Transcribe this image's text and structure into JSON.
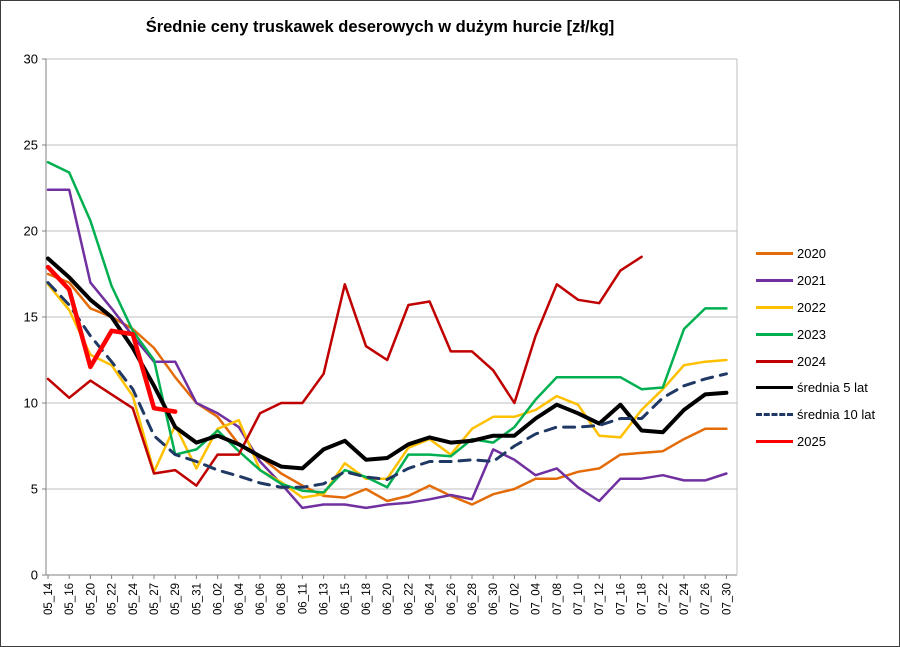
{
  "title": "Średnie ceny truskawek deserowych w dużym hurcie [zł/kg]",
  "colors": {
    "grid": "#BFBFBF",
    "axis": "#808080",
    "background": "#FFFFFF",
    "title_text": "#000000"
  },
  "chart_data": {
    "type": "line",
    "title": "Średnie ceny truskawek deserowych w dużym hurcie [zł/kg]",
    "xlabel": "",
    "ylabel": "",
    "ylim": [
      0,
      30
    ],
    "yticks": [
      0,
      5,
      10,
      15,
      20,
      25,
      30
    ],
    "grid": "horizontal",
    "legend_position": "right",
    "categories": [
      "05_14",
      "05_16",
      "05_20",
      "05_22",
      "05_24",
      "05_27",
      "05_29",
      "05_31",
      "06_02",
      "06_04",
      "06_06",
      "06_08",
      "06_11",
      "06_13",
      "06_15",
      "06_18",
      "06_20",
      "06_22",
      "06_24",
      "06_26",
      "06_28",
      "06_30",
      "07_02",
      "07_04",
      "07_08",
      "07_10",
      "07_12",
      "07_16",
      "07_18",
      "07_22",
      "07_24",
      "07_26",
      "07_30"
    ],
    "series": [
      {
        "name": "2020",
        "color": "#E36C09",
        "style": "solid",
        "width": 2.5,
        "values": [
          17.5,
          17.0,
          15.5,
          15.0,
          14.3,
          13.2,
          11.5,
          10.0,
          9.2,
          7.6,
          6.9,
          5.9,
          5.2,
          4.6,
          4.5,
          5.0,
          4.3,
          4.6,
          5.2,
          4.6,
          4.1,
          4.7,
          5.0,
          5.6,
          5.6,
          6.0,
          6.2,
          7.0,
          7.1,
          7.2,
          7.9,
          8.5,
          8.5
        ]
      },
      {
        "name": "2021",
        "color": "#7030A0",
        "style": "solid",
        "width": 2.5,
        "values": [
          22.4,
          22.4,
          17.0,
          15.5,
          13.9,
          12.4,
          12.4,
          10.0,
          9.4,
          8.6,
          6.6,
          5.3,
          3.9,
          4.1,
          4.1,
          3.9,
          4.1,
          4.2,
          4.4,
          4.65,
          4.4,
          7.3,
          6.7,
          5.8,
          6.2,
          5.1,
          4.3,
          5.6,
          5.6,
          5.8,
          5.5,
          5.5,
          5.9
        ]
      },
      {
        "name": "2022",
        "color": "#FFC000",
        "style": "solid",
        "width": 2.5,
        "values": [
          16.9,
          15.4,
          12.8,
          12.2,
          10.4,
          6.0,
          8.7,
          6.2,
          8.5,
          9.0,
          6.1,
          5.4,
          4.5,
          4.7,
          6.5,
          5.6,
          5.6,
          7.4,
          7.9,
          7.0,
          8.5,
          9.2,
          9.2,
          9.6,
          10.4,
          9.9,
          8.1,
          8.0,
          9.6,
          10.8,
          12.2,
          12.4,
          12.5
        ]
      },
      {
        "name": "2023",
        "color": "#00B050",
        "style": "solid",
        "width": 2.5,
        "values": [
          24.0,
          23.4,
          20.6,
          16.8,
          14.2,
          12.5,
          7.0,
          7.3,
          8.4,
          7.2,
          6.1,
          5.3,
          4.9,
          4.8,
          6.1,
          5.7,
          5.1,
          7.0,
          7.0,
          6.9,
          7.9,
          7.7,
          8.6,
          10.2,
          11.5,
          11.5,
          11.5,
          11.5,
          10.8,
          10.9,
          14.3,
          15.5,
          15.5
        ]
      },
      {
        "name": "2024",
        "color": "#C00000",
        "style": "solid",
        "width": 2.5,
        "values": [
          11.4,
          10.3,
          11.3,
          10.5,
          9.7,
          5.9,
          6.1,
          5.2,
          7.0,
          7.0,
          9.4,
          10.0,
          10.0,
          11.7,
          16.9,
          13.3,
          12.5,
          15.7,
          15.9,
          13.0,
          13.0,
          11.9,
          10.0,
          13.9,
          16.9,
          16.0,
          15.8,
          17.7,
          18.5,
          null,
          null,
          null,
          null
        ]
      },
      {
        "name": "średnia 5 lat",
        "color": "#000000",
        "style": "solid",
        "width": 4,
        "values": [
          18.4,
          17.3,
          16.0,
          15.0,
          13.2,
          11.0,
          8.6,
          7.7,
          8.1,
          7.6,
          6.9,
          6.3,
          6.2,
          7.3,
          7.8,
          6.7,
          6.8,
          7.6,
          8.0,
          7.7,
          7.8,
          8.1,
          8.1,
          9.1,
          9.9,
          9.4,
          8.8,
          9.9,
          8.4,
          8.3,
          9.6,
          10.5,
          10.6
        ]
      },
      {
        "name": "średnia 10 lat",
        "color": "#1F3864",
        "style": "dashed",
        "width": 3,
        "values": [
          17.0,
          15.7,
          13.9,
          12.4,
          10.8,
          8.1,
          7.0,
          6.6,
          6.1,
          5.75,
          5.35,
          5.1,
          5.1,
          5.3,
          6.0,
          5.7,
          5.55,
          6.2,
          6.6,
          6.6,
          6.7,
          6.6,
          7.5,
          8.2,
          8.6,
          8.6,
          8.7,
          9.1,
          9.1,
          10.3,
          11.0,
          11.4,
          11.7
        ]
      },
      {
        "name": "2025",
        "color": "#FF0000",
        "style": "solid",
        "width": 4.5,
        "values": [
          17.9,
          16.6,
          12.1,
          14.2,
          14.0,
          9.7,
          9.5,
          null,
          null,
          null,
          null,
          null,
          null,
          null,
          null,
          null,
          null,
          null,
          null,
          null,
          null,
          null,
          null,
          null,
          null,
          null,
          null,
          null,
          null,
          null,
          null,
          null,
          null
        ]
      }
    ]
  }
}
